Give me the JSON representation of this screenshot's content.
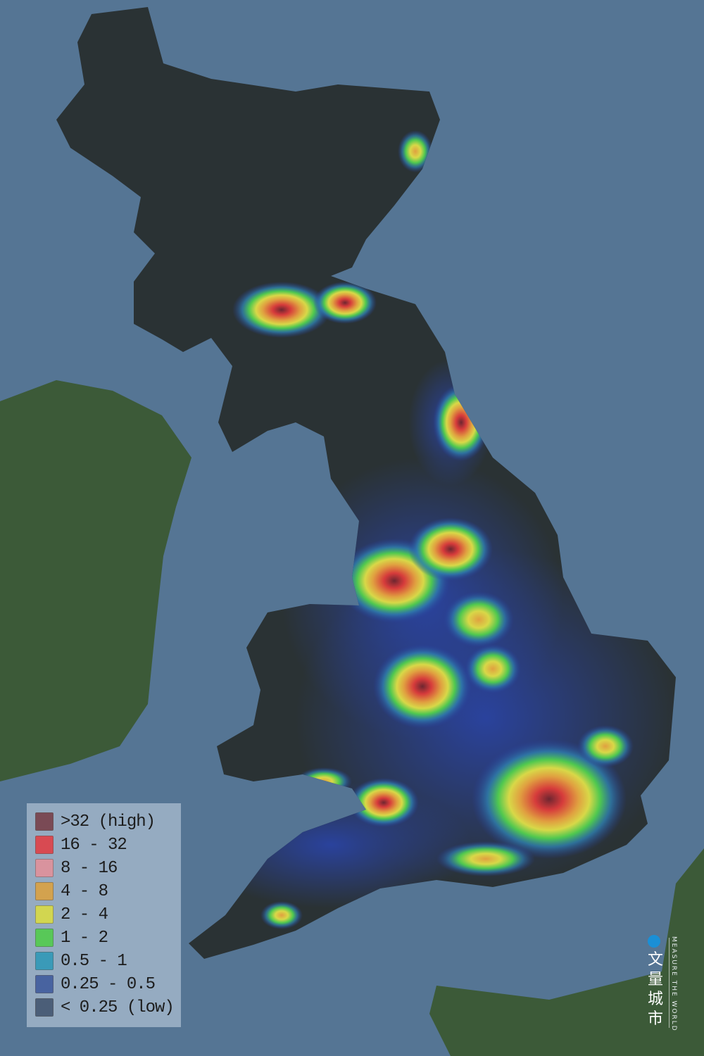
{
  "map": {
    "colors": {
      "sea": "#557594",
      "land_dark": "#2a3234",
      "land_green": "#3d5a3a"
    },
    "hotspot_colors": [
      "#7a2e3a",
      "#d63b3b",
      "#e0a040",
      "#d8d848",
      "#4fc84f",
      "#2f7fae",
      "#2f4fa0"
    ]
  },
  "legend": {
    "items": [
      {
        "label": ">32 (high)",
        "color": "#7a4a55"
      },
      {
        "label": "16 - 32",
        "color": "#d84a52"
      },
      {
        "label": "8 - 16",
        "color": "#d9939e"
      },
      {
        "label": "4 - 8",
        "color": "#d3a24e"
      },
      {
        "label": "2 - 4",
        "color": "#d2d650"
      },
      {
        "label": "1 - 2",
        "color": "#58c858"
      },
      {
        "label": "0.5 - 1",
        "color": "#3a9ab8"
      },
      {
        "label": "0.25 - 0.5",
        "color": "#4863a0"
      },
      {
        "label": "< 0.25 (low)",
        "color": "#4b5e78"
      }
    ]
  },
  "logo": {
    "chinese": "文量城市",
    "english": "MEASURE THE WORLD"
  }
}
